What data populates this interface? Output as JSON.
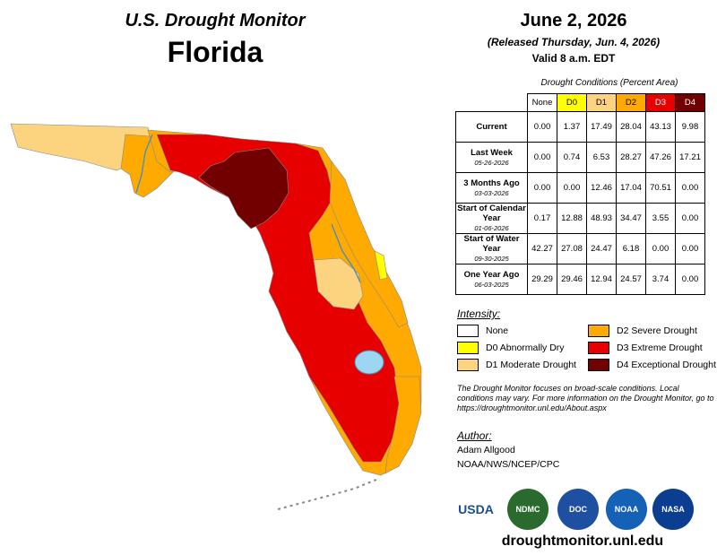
{
  "header": {
    "title": "U.S. Drought Monitor",
    "state": "Florida",
    "date": "June 2, 2026",
    "released": "(Released Thursday, Jun. 4, 2026)",
    "valid": "Valid 8 a.m. EDT"
  },
  "conditions": {
    "title": "Drought Conditions (Percent Area)",
    "columns": [
      "None",
      "D0",
      "D1",
      "D2",
      "D3",
      "D4"
    ],
    "column_colors": [
      "#ffffff",
      "#ffff00",
      "#fcd37f",
      "#ffaa00",
      "#e60000",
      "#730000"
    ],
    "rows": [
      {
        "label": "Current",
        "date": "",
        "values": [
          "0.00",
          "1.37",
          "17.49",
          "28.04",
          "43.13",
          "9.98"
        ]
      },
      {
        "label": "Last Week",
        "date": "05-26-2026",
        "values": [
          "0.00",
          "0.74",
          "6.53",
          "28.27",
          "47.26",
          "17.21"
        ]
      },
      {
        "label": "3 Months Ago",
        "date": "03-03-2026",
        "values": [
          "0.00",
          "0.00",
          "12.46",
          "17.04",
          "70.51",
          "0.00"
        ]
      },
      {
        "label": "Start of Calendar Year",
        "date": "01-06-2026",
        "values": [
          "0.17",
          "12.88",
          "48.93",
          "34.47",
          "3.55",
          "0.00"
        ]
      },
      {
        "label": "Start of Water Year",
        "date": "09-30-2025",
        "values": [
          "42.27",
          "27.08",
          "24.47",
          "6.18",
          "0.00",
          "0.00"
        ]
      },
      {
        "label": "One Year Ago",
        "date": "06-03-2025",
        "values": [
          "29.29",
          "29.46",
          "12.94",
          "24.57",
          "3.74",
          "0.00"
        ]
      }
    ]
  },
  "legend": {
    "title": "Intensity:",
    "items": [
      {
        "label": "None",
        "color": "#ffffff"
      },
      {
        "label": "D0 Abnormally Dry",
        "color": "#ffff00"
      },
      {
        "label": "D1 Moderate Drought",
        "color": "#fcd37f"
      },
      {
        "label": "D2 Severe Drought",
        "color": "#ffaa00"
      },
      {
        "label": "D3 Extreme Drought",
        "color": "#e60000"
      },
      {
        "label": "D4 Exceptional Drought",
        "color": "#730000"
      }
    ]
  },
  "note": "The Drought Monitor focuses on broad-scale conditions. Local conditions may vary. For more information on the Drought Monitor, go to https://droughtmonitor.unl.edu/About.aspx",
  "author": {
    "title": "Author:",
    "name": "Adam Allgood",
    "org": "NOAA/NWS/NCEP/CPC"
  },
  "logos": [
    "USDA",
    "NDMC",
    "DOC",
    "NOAA",
    "NASA"
  ],
  "footer_url": "droughtmonitor.unl.edu"
}
